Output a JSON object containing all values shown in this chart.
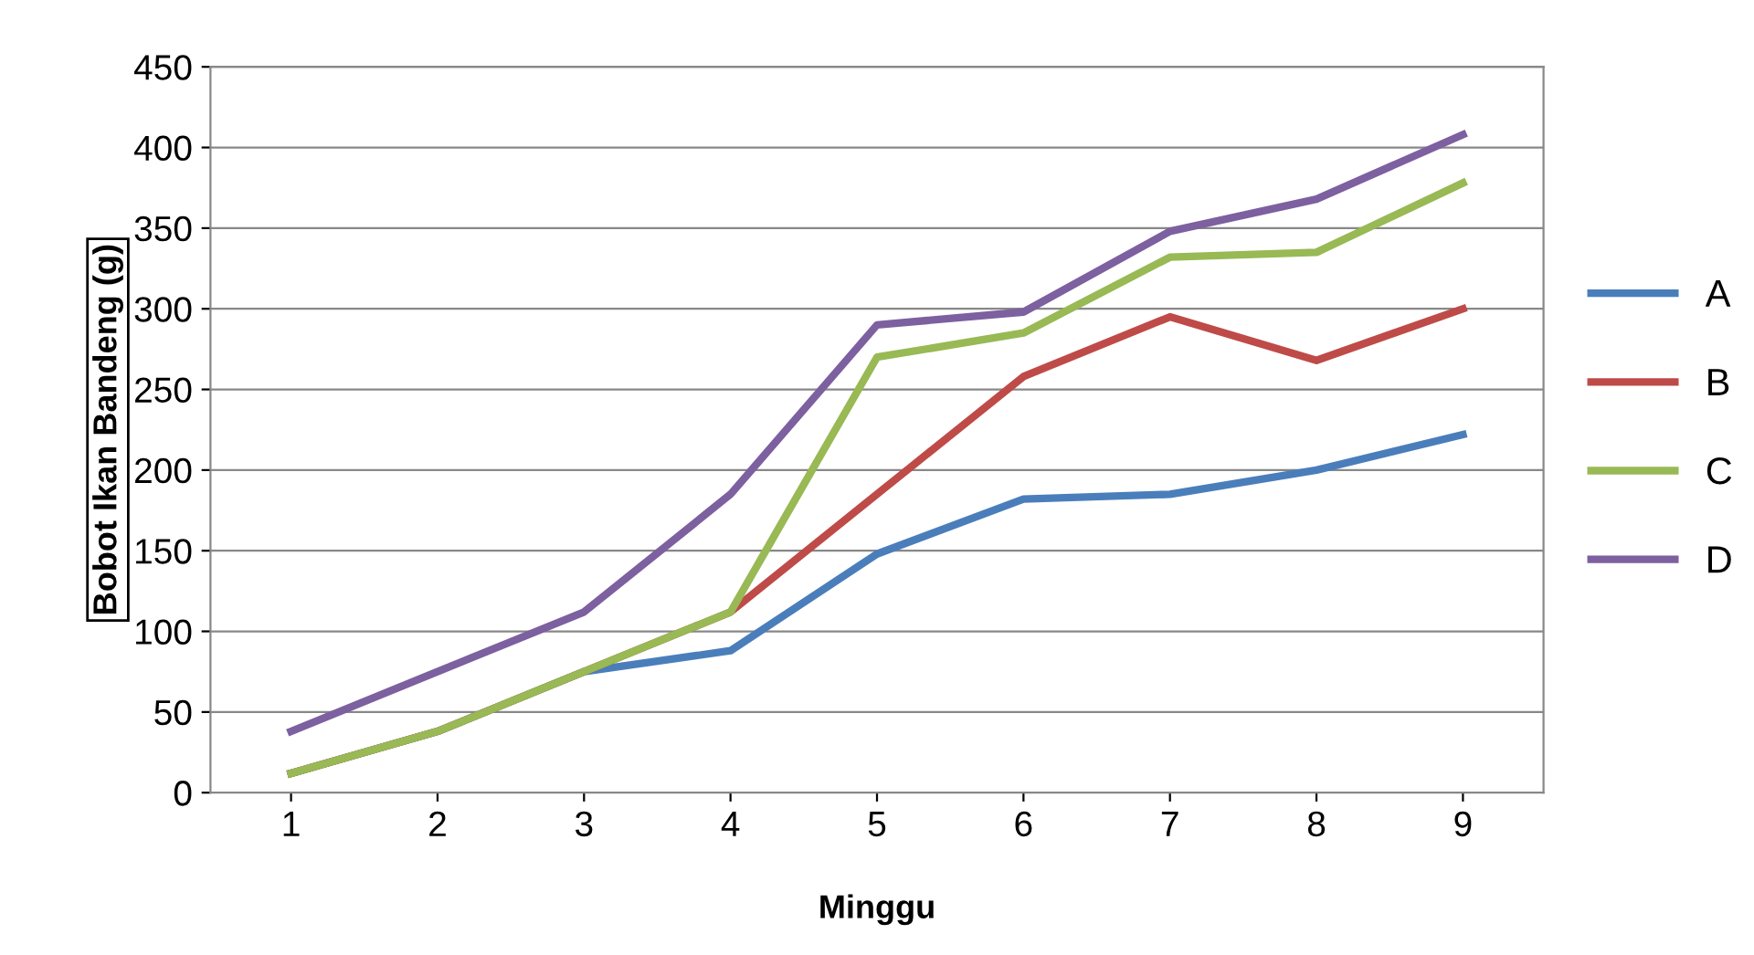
{
  "chart_data": {
    "type": "line",
    "xlabel": "Minggu",
    "ylabel": "Bobot Ikan Bandeng (g)",
    "categories": [
      "1",
      "2",
      "3",
      "4",
      "5",
      "6",
      "7",
      "8",
      "9"
    ],
    "series": [
      {
        "name": "A",
        "color": "#4a7ebb",
        "values": [
          12,
          38,
          75,
          88,
          148,
          182,
          185,
          200,
          222
        ]
      },
      {
        "name": "B",
        "color": "#be4b48",
        "values": [
          12,
          38,
          75,
          112,
          185,
          258,
          295,
          268,
          300
        ]
      },
      {
        "name": "C",
        "color": "#98b954",
        "values": [
          12,
          38,
          75,
          112,
          270,
          285,
          332,
          335,
          378
        ]
      },
      {
        "name": "D",
        "color": "#7d60a0",
        "values": [
          38,
          75,
          112,
          185,
          290,
          298,
          348,
          368,
          408
        ]
      }
    ],
    "ylim": [
      0,
      450
    ],
    "yticks": [
      0,
      50,
      100,
      150,
      200,
      250,
      300,
      350,
      400,
      450
    ],
    "grid": "y",
    "legend": "right",
    "marker": "none",
    "line_style": "solid"
  }
}
